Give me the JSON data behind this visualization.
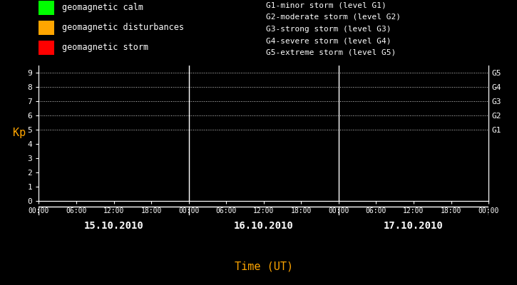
{
  "bg_color": "#000000",
  "plot_bg_color": "#000000",
  "text_color": "#ffffff",
  "axis_color": "#ffffff",
  "grid_color": "#ffffff",
  "xlabel_color": "#ffa500",
  "date_color": "#ffffff",
  "ylabel_color": "#ffa500",
  "font": "monospace",
  "legend_items": [
    {
      "label": "geomagnetic calm",
      "color": "#00ff00"
    },
    {
      "label": "geomagnetic disturbances",
      "color": "#ffa500"
    },
    {
      "label": "geomagnetic storm",
      "color": "#ff0000"
    }
  ],
  "storm_levels": [
    "G1-minor storm (level G1)",
    "G2-moderate storm (level G2)",
    "G3-strong storm (level G3)",
    "G4-severe storm (level G4)",
    "G5-extreme storm (level G5)"
  ],
  "storm_level_yvals": [
    5,
    6,
    7,
    8,
    9
  ],
  "storm_level_labels": [
    "G1",
    "G2",
    "G3",
    "G4",
    "G5"
  ],
  "ylabel": "Kp",
  "xlabel": "Time (UT)",
  "ylim": [
    0,
    9.5
  ],
  "yticks": [
    0,
    1,
    2,
    3,
    4,
    5,
    6,
    7,
    8,
    9
  ],
  "days": [
    "15.10.2010",
    "16.10.2010",
    "17.10.2010"
  ],
  "time_ticks_labels": [
    "00:00",
    "06:00",
    "12:00",
    "18:00"
  ],
  "num_days": 3,
  "dotted_yvals": [
    5,
    6,
    7,
    8,
    9
  ]
}
